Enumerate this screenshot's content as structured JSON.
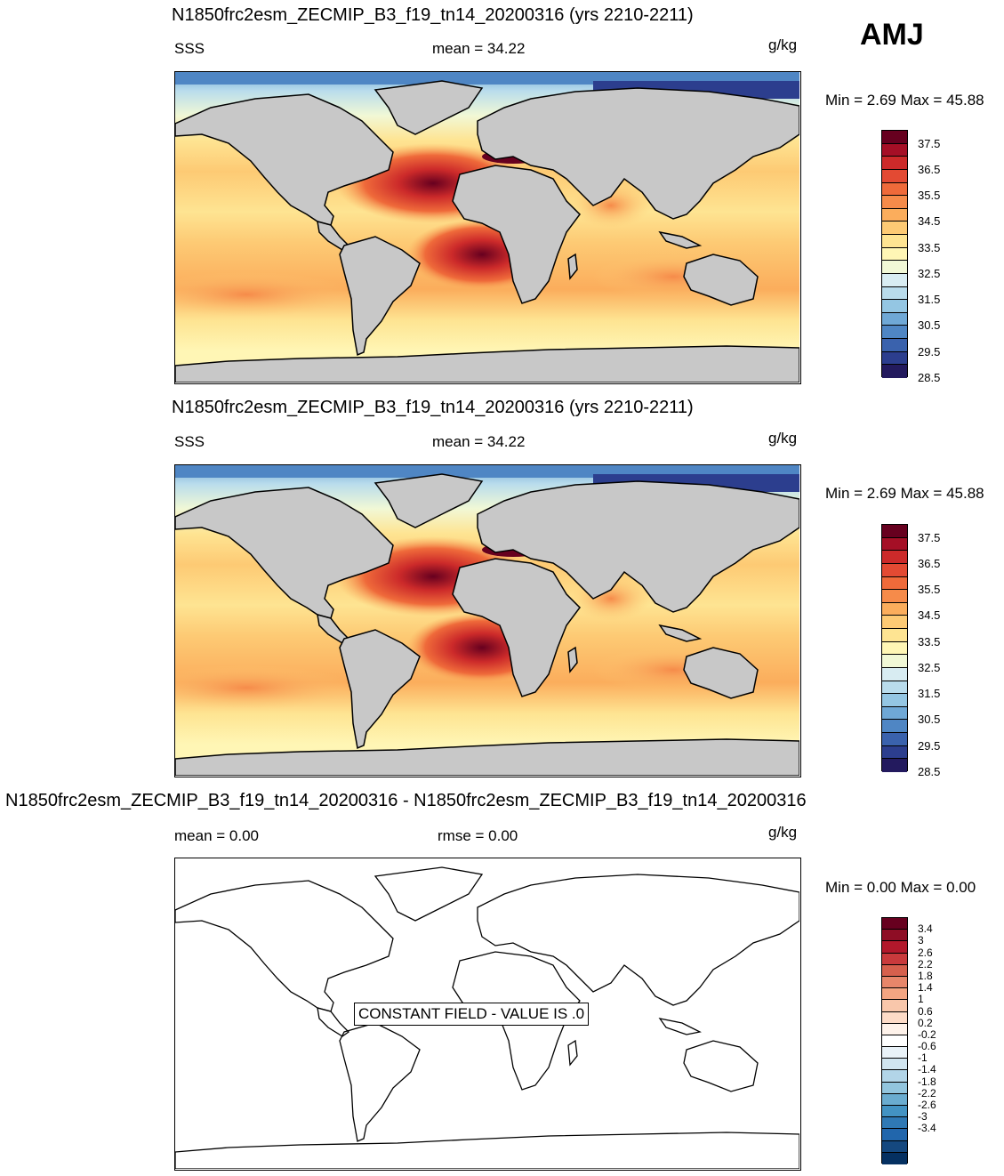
{
  "badge": "AMJ",
  "panels": [
    {
      "title": "N1850frc2esm_ZECMIP_B3_f19_tn14_20200316 (yrs 2210-2211)",
      "left_label": "SSS",
      "center_label": "mean =  34.22",
      "units": "g/kg",
      "minmax": "Min =   2.69 Max =  45.88",
      "colorbar": {
        "colors": [
          "#67001f",
          "#a50f26",
          "#cc2a2a",
          "#e34a33",
          "#ef6a3a",
          "#f68b4a",
          "#fbad5c",
          "#fdca74",
          "#fee492",
          "#fff6b5",
          "#f1f8d6",
          "#d8ecf2",
          "#b9dcec",
          "#94c6e3",
          "#6fa8d6",
          "#4f86c4",
          "#3a62ad",
          "#2c3e8e",
          "#231a5e"
        ],
        "labels": [
          "37.5",
          "36.5",
          "35.5",
          "34.5",
          "33.5",
          "32.5",
          "31.5",
          "30.5",
          "29.5",
          "28.5"
        ]
      }
    },
    {
      "title": "N1850frc2esm_ZECMIP_B3_f19_tn14_20200316 (yrs 2210-2211)",
      "left_label": "SSS",
      "center_label": "mean =  34.22",
      "units": "g/kg",
      "minmax": "Min =   2.69 Max =  45.88",
      "colorbar": {
        "colors": [
          "#67001f",
          "#a50f26",
          "#cc2a2a",
          "#e34a33",
          "#ef6a3a",
          "#f68b4a",
          "#fbad5c",
          "#fdca74",
          "#fee492",
          "#fff6b5",
          "#f1f8d6",
          "#d8ecf2",
          "#b9dcec",
          "#94c6e3",
          "#6fa8d6",
          "#4f86c4",
          "#3a62ad",
          "#2c3e8e",
          "#231a5e"
        ],
        "labels": [
          "37.5",
          "36.5",
          "35.5",
          "34.5",
          "33.5",
          "32.5",
          "31.5",
          "30.5",
          "29.5",
          "28.5"
        ]
      }
    },
    {
      "title": "N1850frc2esm_ZECMIP_B3_f19_tn14_20200316 - N1850frc2esm_ZECMIP_B3_f19_tn14_20200316",
      "left_label": "mean =   0.00",
      "center_label": "rmse =   0.00",
      "units": "g/kg",
      "minmax": "Min =   0.00 Max =   0.00",
      "constant_field": "CONSTANT FIELD - VALUE IS .0",
      "colorbar": {
        "colors": [
          "#67001f",
          "#8e0d25",
          "#b2182b",
          "#c93a3c",
          "#d6604d",
          "#e7866a",
          "#f4a582",
          "#f9c7ab",
          "#fddbc7",
          "#fef2ea",
          "#ffffff",
          "#e9f2f8",
          "#d1e5f0",
          "#b2d5e8",
          "#92c5de",
          "#6aacd0",
          "#4393c3",
          "#2f79b5",
          "#2166ac",
          "#15487f",
          "#053061"
        ],
        "labels": [
          "3.4",
          "3",
          "2.6",
          "2.2",
          "1.8",
          "1.4",
          "1",
          "0.6",
          "0.2",
          "-0.2",
          "-0.6",
          "-1",
          "-1.4",
          "-1.8",
          "-2.2",
          "-2.6",
          "-3",
          "-3.4"
        ]
      }
    }
  ]
}
